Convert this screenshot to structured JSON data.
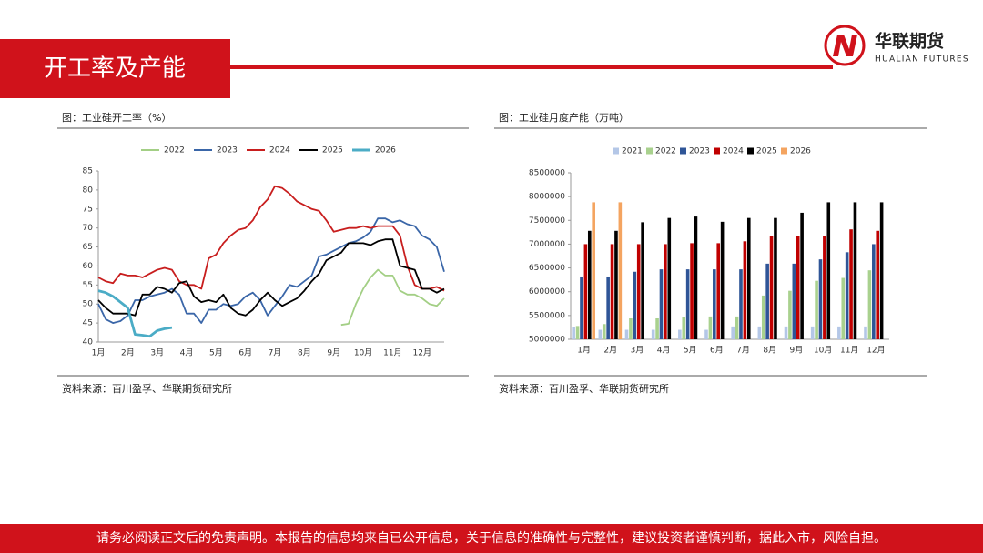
{
  "header": {
    "title": "开工率及产能",
    "logo_cn": "华联期货",
    "logo_en": "HUALIAN FUTURES"
  },
  "chart_data": [
    {
      "type": "line",
      "title": "图：工业硅开工率（%）",
      "source": "资料来源：百川盈孚、华联期货研究所",
      "categories": [
        "1月",
        null,
        null,
        null,
        "2月",
        null,
        null,
        null,
        "3月",
        null,
        null,
        null,
        "4月",
        null,
        null,
        null,
        "5月",
        null,
        null,
        null,
        "6月",
        null,
        null,
        null,
        "7月",
        null,
        null,
        null,
        "8月",
        null,
        null,
        null,
        "9月",
        null,
        null,
        null,
        "10月",
        null,
        null,
        null,
        "11月",
        null,
        null,
        null,
        "12月",
        null,
        null,
        null
      ],
      "ylim": [
        40,
        85
      ],
      "yticks": [
        40,
        45,
        50,
        55,
        60,
        65,
        70,
        75,
        80,
        85
      ],
      "series": [
        {
          "name": "2022",
          "color": "#a3cf85",
          "values": [
            null,
            null,
            null,
            null,
            null,
            null,
            null,
            null,
            null,
            null,
            null,
            null,
            null,
            null,
            null,
            null,
            null,
            null,
            null,
            null,
            null,
            null,
            null,
            null,
            null,
            null,
            null,
            null,
            null,
            null,
            null,
            null,
            null,
            44.5,
            44.8,
            50,
            54,
            57,
            59,
            57.5,
            57.5,
            53.5,
            52.5,
            52.5,
            51.5,
            50,
            49.5,
            51.5
          ]
        },
        {
          "name": "2023",
          "color": "#3a66a8",
          "values": [
            50,
            46,
            45,
            45.5,
            47,
            51,
            51,
            52,
            52.5,
            53,
            54,
            52.5,
            47.5,
            47.5,
            45,
            48.5,
            48.5,
            50,
            49.5,
            50,
            52,
            53,
            51,
            47,
            49.5,
            52,
            55,
            54.5,
            56,
            57.5,
            62.5,
            63,
            64,
            65,
            66,
            66.5,
            67.5,
            69,
            72.5,
            72.5,
            71.5,
            72,
            71,
            70.5,
            68,
            67,
            65,
            58.5
          ]
        },
        {
          "name": "2024",
          "color": "#c81e1e",
          "values": [
            57,
            56,
            55.5,
            58,
            57.5,
            57.5,
            57,
            58,
            59,
            59.5,
            59,
            56,
            55,
            55,
            54,
            62,
            63,
            66,
            68,
            69.5,
            70,
            72,
            75.5,
            77.5,
            81,
            80.5,
            79,
            77,
            76,
            75,
            74.5,
            72,
            69,
            69.5,
            70,
            70,
            70.5,
            70,
            70.5,
            70.5,
            70.5,
            68,
            60,
            55,
            54,
            54,
            54.5,
            53.5
          ]
        },
        {
          "name": "2025",
          "color": "#000000",
          "values": [
            51,
            49,
            47.5,
            47.5,
            47.5,
            47,
            52.5,
            52.5,
            54.5,
            54,
            53,
            55.5,
            56,
            52,
            50.5,
            51,
            50.5,
            52.5,
            49,
            47.5,
            47,
            48.5,
            51,
            53,
            51,
            49.5,
            50.5,
            51.5,
            53.5,
            56,
            58,
            61.5,
            62.5,
            63.5,
            66,
            66,
            66,
            65.5,
            66.5,
            67,
            67,
            60,
            59.5,
            59,
            54,
            54,
            53,
            54
          ]
        },
        {
          "name": "2026",
          "color": "#4bacc6",
          "values": [
            53.5,
            53,
            52,
            50.5,
            49,
            42,
            41.8,
            41.5,
            43,
            43.5,
            43.8,
            null,
            null,
            null,
            null,
            null,
            null,
            null,
            null,
            null,
            null,
            null,
            null,
            null,
            null,
            null,
            null,
            null,
            null,
            null,
            null,
            null,
            null,
            null,
            null,
            null,
            null,
            null,
            null,
            null,
            null,
            null,
            null,
            null,
            null,
            null,
            null,
            null
          ]
        }
      ]
    },
    {
      "type": "bar",
      "title": "图：工业硅月度产能（万吨）",
      "source": "资料来源：百川盈孚、华联期货研究所",
      "categories": [
        "1月",
        "2月",
        "3月",
        "4月",
        "5月",
        "6月",
        "7月",
        "8月",
        "9月",
        "10月",
        "11月",
        "12月"
      ],
      "ylim": [
        5000000,
        8500000
      ],
      "yticks": [
        5000000,
        5500000,
        6000000,
        6500000,
        7000000,
        7500000,
        8000000,
        8500000
      ],
      "series": [
        {
          "name": "2021",
          "color": "#b4c7e7",
          "values": [
            5250000,
            5200000,
            5200000,
            5200000,
            5200000,
            5200000,
            5270000,
            5270000,
            5270000,
            5270000,
            5270000,
            5270000
          ]
        },
        {
          "name": "2022",
          "color": "#a9d18e",
          "values": [
            5280000,
            5320000,
            5440000,
            5440000,
            5460000,
            5480000,
            5480000,
            5920000,
            6020000,
            6230000,
            6290000,
            6450000
          ]
        },
        {
          "name": "2023",
          "color": "#2f5597",
          "values": [
            6320000,
            6320000,
            6420000,
            6470000,
            6470000,
            6470000,
            6470000,
            6590000,
            6590000,
            6680000,
            6830000,
            7000000
          ]
        },
        {
          "name": "2024",
          "color": "#c00000",
          "values": [
            7000000,
            7000000,
            7000000,
            7000000,
            7020000,
            7020000,
            7060000,
            7180000,
            7180000,
            7180000,
            7310000,
            7280000
          ]
        },
        {
          "name": "2025",
          "color": "#000000",
          "values": [
            7280000,
            7280000,
            7460000,
            7550000,
            7580000,
            7470000,
            7550000,
            7550000,
            7660000,
            7880000,
            7880000,
            7880000
          ]
        },
        {
          "name": "2026",
          "color": "#f4a460",
          "values": [
            7880000,
            7880000,
            null,
            null,
            null,
            null,
            null,
            null,
            null,
            null,
            null,
            null
          ]
        }
      ]
    }
  ],
  "footer": {
    "disclaimer": "请务必阅读正文后的免责声明。本报告的信息均来自已公开信息，关于信息的准确性与完整性，建议投资者谨慎判断，据此入市，风险自担。"
  }
}
